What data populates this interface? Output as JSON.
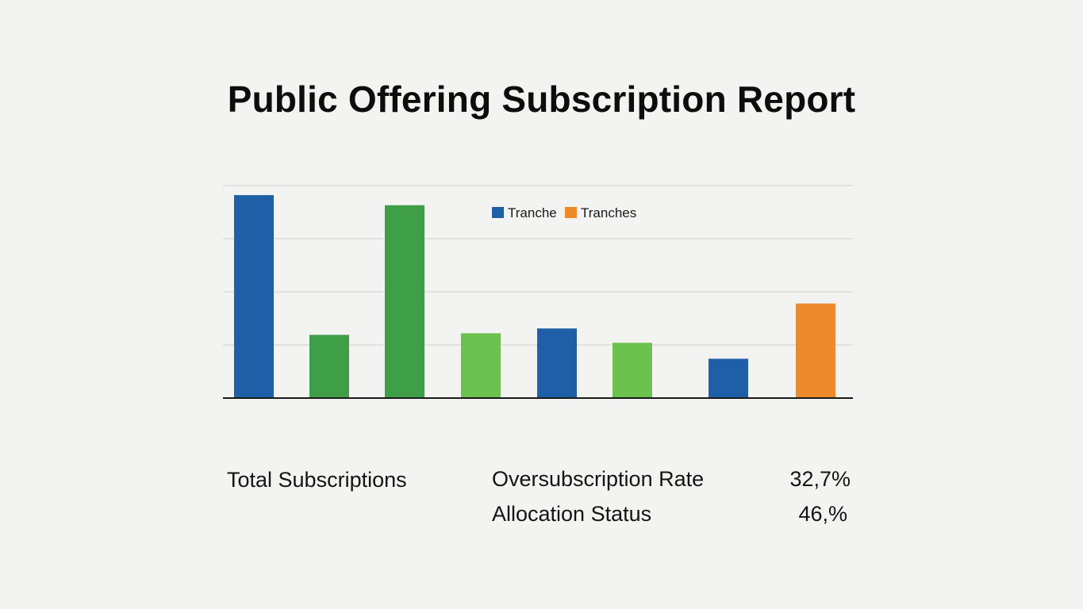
{
  "title": "Public Offering Subscription Report",
  "chart_data": {
    "type": "bar",
    "title": "Public Offering Subscription Report",
    "xlabel": "",
    "ylabel": "",
    "ylim": [
      0,
      4
    ],
    "grid": true,
    "gridlines": [
      1,
      2,
      3,
      4
    ],
    "legend": {
      "placement": "top-center",
      "entries": [
        {
          "label": "Tranche",
          "color": "#1f5fa8"
        },
        {
          "label": "Tranches",
          "color": "#ef8a2c"
        }
      ]
    },
    "bars": [
      {
        "value": 3.82,
        "color": "#1f5fa8"
      },
      {
        "value": 1.19,
        "color": "#3f9e48"
      },
      {
        "value": 3.63,
        "color": "#3f9e48"
      },
      {
        "value": 1.22,
        "color": "#6bc24f"
      },
      {
        "value": 1.31,
        "color": "#1f5fa8"
      },
      {
        "value": 1.04,
        "color": "#6bc24f"
      },
      {
        "value": 0.74,
        "color": "#1f5fa8"
      },
      {
        "value": 1.78,
        "color": "#ef8a2c"
      }
    ]
  },
  "stats": {
    "total_label": "Total Subscriptions",
    "oversub_label": "Oversubscription Rate",
    "oversub_value": "32,7%",
    "allocation_label": "Allocation Status",
    "allocation_value": "46,%"
  }
}
